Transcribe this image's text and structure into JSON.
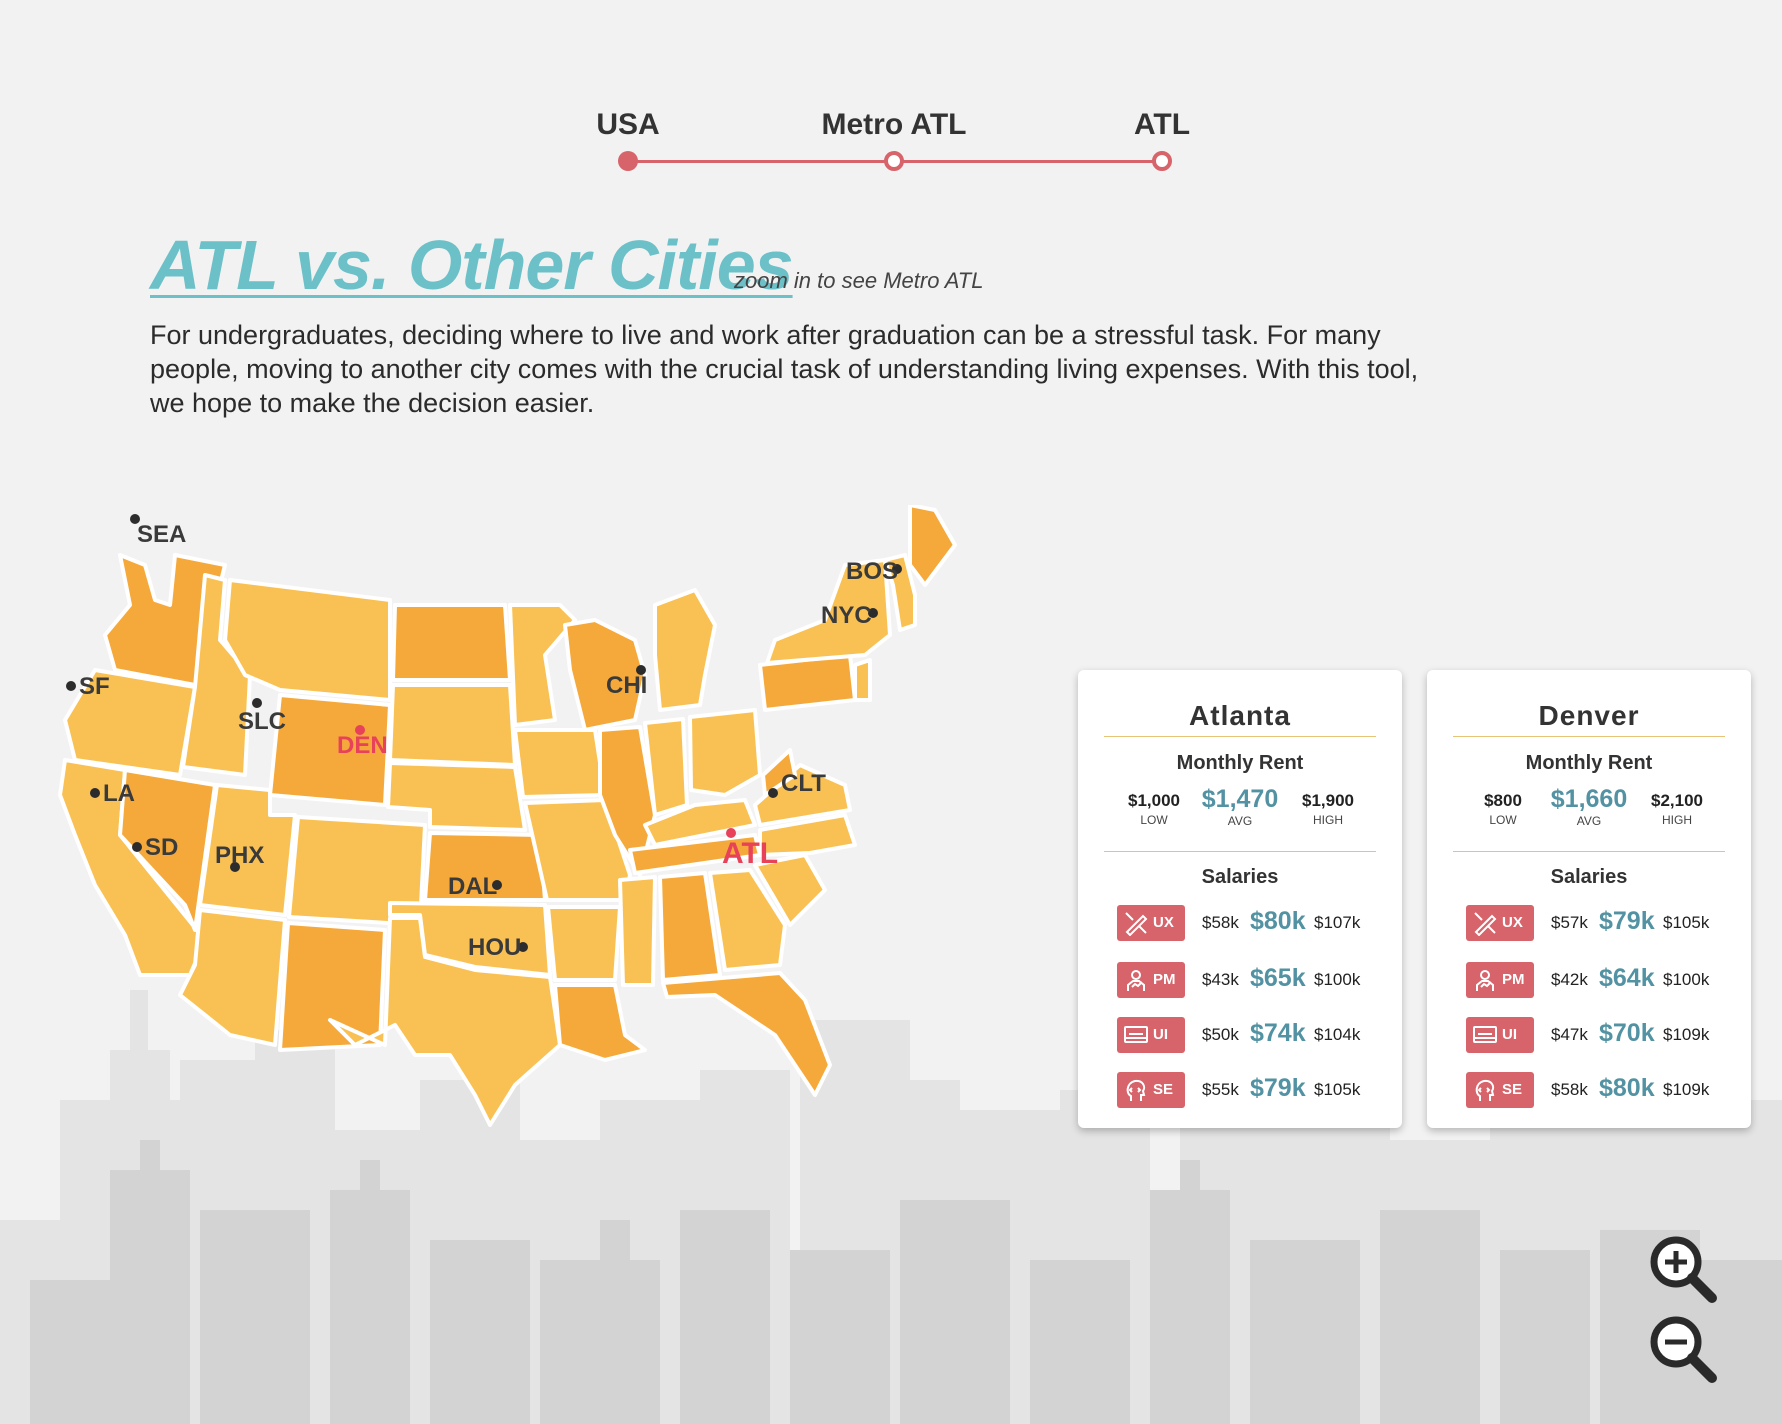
{
  "breadcrumb": [
    {
      "label": "USA",
      "state": "active"
    },
    {
      "label": "Metro ATL",
      "state": "inactive"
    },
    {
      "label": "ATL",
      "state": "inactive"
    }
  ],
  "header": {
    "title": "ATL vs. Other Cities",
    "subtitle": "zoom in to see Metro ATL",
    "intro": "For undergraduates, deciding where to live and work after graduation can be a stressful task. For many people, moving to another city comes with the crucial task of understanding living expenses. With this tool, we hope to make the decision easier."
  },
  "map": {
    "cities": [
      "SEA",
      "SF",
      "LA",
      "SD",
      "SLC",
      "PHX",
      "DEN",
      "DAL",
      "HOU",
      "CHI",
      "CLT",
      "ATL",
      "BOS",
      "NYC"
    ],
    "highlighted": [
      "ATL",
      "DEN"
    ]
  },
  "cards": [
    {
      "city": "Atlanta",
      "rent_title": "Monthly Rent",
      "rent": {
        "low": "$1,000",
        "avg": "$1,470",
        "high": "$1,900",
        "low_label": "LOW",
        "avg_label": "AVG",
        "high_label": "HIGH"
      },
      "salaries_title": "Salaries",
      "salaries": [
        {
          "role": "UX",
          "icon": "ux-design-icon",
          "low": "$58k",
          "avg": "$80k",
          "high": "$107k"
        },
        {
          "role": "PM",
          "icon": "product-manager-icon",
          "low": "$43k",
          "avg": "$65k",
          "high": "$100k"
        },
        {
          "role": "UI",
          "icon": "ui-design-icon",
          "low": "$50k",
          "avg": "$74k",
          "high": "$104k"
        },
        {
          "role": "SE",
          "icon": "software-engineer-icon",
          "low": "$55k",
          "avg": "$79k",
          "high": "$105k"
        }
      ]
    },
    {
      "city": "Denver",
      "rent_title": "Monthly Rent",
      "rent": {
        "low": "$800",
        "avg": "$1,660",
        "high": "$2,100",
        "low_label": "LOW",
        "avg_label": "AVG",
        "high_label": "HIGH"
      },
      "salaries_title": "Salaries",
      "salaries": [
        {
          "role": "UX",
          "icon": "ux-design-icon",
          "low": "$57k",
          "avg": "$79k",
          "high": "$105k"
        },
        {
          "role": "PM",
          "icon": "product-manager-icon",
          "low": "$42k",
          "avg": "$64k",
          "high": "$100k"
        },
        {
          "role": "UI",
          "icon": "ui-design-icon",
          "low": "$47k",
          "avg": "$70k",
          "high": "$109k"
        },
        {
          "role": "SE",
          "icon": "software-engineer-icon",
          "low": "$58k",
          "avg": "$80k",
          "high": "$109k"
        }
      ]
    }
  ],
  "zoom": {
    "in_icon": "zoom-in-icon",
    "out_icon": "zoom-out-icon"
  },
  "colors": {
    "accent": "#6cc0c8",
    "brand_red": "#d7646b",
    "highlight": "#e8415a",
    "value_teal": "#5292a2",
    "map_light": "#f9c153",
    "map_dark": "#f5a93b",
    "divider": "#e8c277"
  }
}
